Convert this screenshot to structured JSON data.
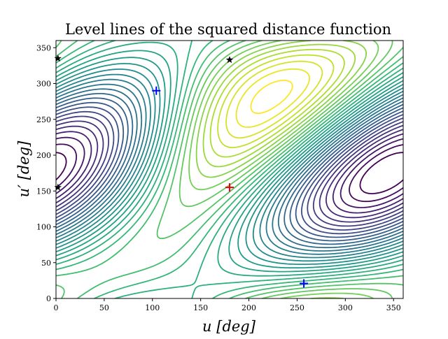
{
  "chart_data": {
    "type": "contour",
    "title": "Level lines of the squared distance function",
    "xlabel": "u [deg]",
    "ylabel": "u′ [deg]",
    "xlim": [
      0,
      360
    ],
    "ylim": [
      0,
      360
    ],
    "xticks": [
      0,
      50,
      100,
      150,
      200,
      250,
      300,
      350
    ],
    "yticks": [
      0,
      50,
      100,
      150,
      200,
      250,
      300,
      350
    ],
    "colormap": "viridis",
    "grid": false,
    "legend": "none",
    "markers": [
      {
        "kind": "max",
        "symbol": "+",
        "color": "#e8000b",
        "x": 180,
        "y": 155
      },
      {
        "kind": "min",
        "symbol": "+",
        "color": "#0000ff",
        "x": 104,
        "y": 290
      },
      {
        "kind": "min",
        "symbol": "+",
        "color": "#0000ff",
        "x": 257,
        "y": 21
      },
      {
        "kind": "saddle",
        "symbol": "star",
        "color": "#000000",
        "x": 2,
        "y": 155
      },
      {
        "kind": "saddle",
        "symbol": "star",
        "color": "#000000",
        "x": 2,
        "y": 335
      },
      {
        "kind": "saddle",
        "symbol": "star",
        "color": "#000000",
        "x": 180,
        "y": 333
      }
    ]
  }
}
